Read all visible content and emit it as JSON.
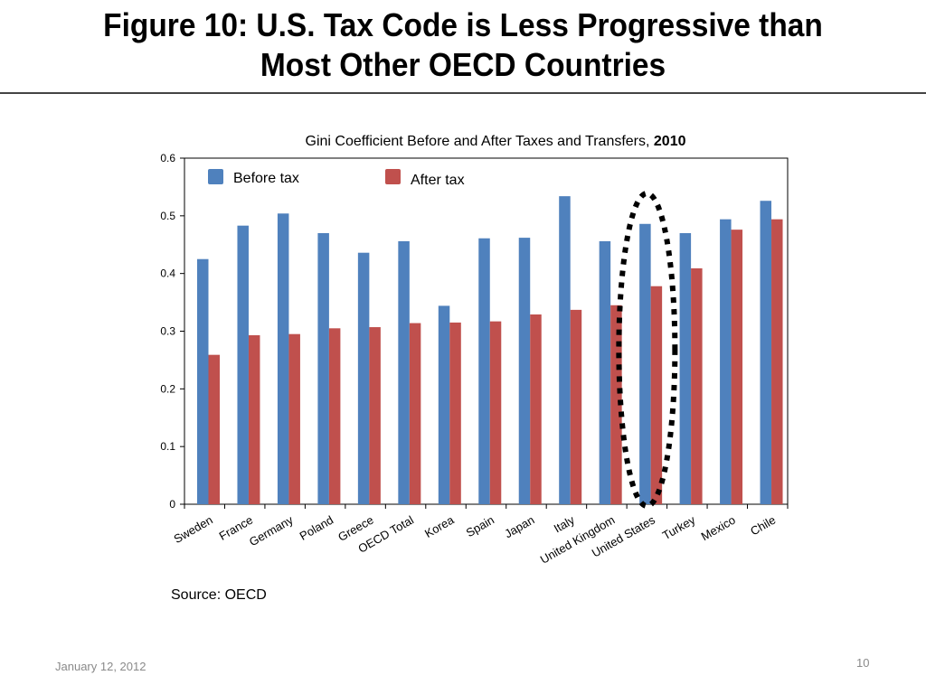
{
  "slide": {
    "title_line1": "Figure 10: U.S. Tax Code is Less Progressive than",
    "title_line2": "Most Other OECD Countries",
    "source": "Source: OECD",
    "date": "January 12, 2012",
    "page_number": "10",
    "highlight": "United States"
  },
  "colors": {
    "before": "#4f81bd",
    "after": "#c0504d",
    "highlight_ellipse": "#000000"
  },
  "chart_data": {
    "type": "bar",
    "title": "Gini Coefficient Before and After Taxes and Transfers",
    "title_year": "2010",
    "xlabel": "",
    "ylabel": "",
    "ylim": [
      0,
      0.6
    ],
    "yticks": [
      "0",
      "0.1",
      "0.2",
      "0.3",
      "0.4",
      "0.5",
      "0.6"
    ],
    "grid": false,
    "legend_position": "top-inside",
    "categories": [
      "Sweden",
      "France",
      "Germany",
      "Poland",
      "Greece",
      "OECD Total",
      "Korea",
      "Spain",
      "Japan",
      "Italy",
      "United Kingdom",
      "United States",
      "Turkey",
      "Mexico",
      "Chile"
    ],
    "series": [
      {
        "name": "Before tax",
        "values": [
          0.425,
          0.483,
          0.504,
          0.47,
          0.436,
          0.456,
          0.344,
          0.461,
          0.462,
          0.534,
          0.456,
          0.486,
          0.47,
          0.494,
          0.526
        ]
      },
      {
        "name": "After tax",
        "values": [
          0.259,
          0.293,
          0.295,
          0.305,
          0.307,
          0.314,
          0.315,
          0.317,
          0.329,
          0.337,
          0.345,
          0.378,
          0.409,
          0.476,
          0.494
        ]
      }
    ]
  }
}
